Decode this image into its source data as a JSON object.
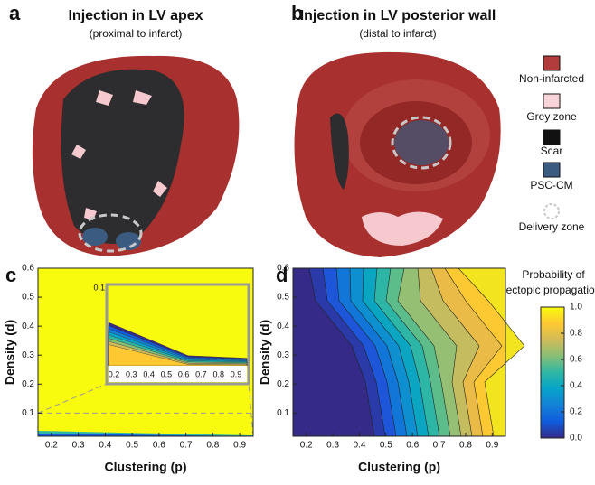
{
  "panels": [
    {
      "label": "a",
      "title": "Injection in LV apex",
      "subtitle": "(proximal to infarct)"
    },
    {
      "label": "b",
      "title": "Injection in LV posterior wall",
      "subtitle": "(distal to infarct)"
    }
  ],
  "legend": [
    {
      "name": "Non-infarcted",
      "color": "#b23b3b"
    },
    {
      "name": "Grey zone",
      "color": "#f8d3d7"
    },
    {
      "name": "Scar",
      "color": "#111111"
    },
    {
      "name": "PSC-CM",
      "color": "#3b5b80"
    },
    {
      "name": "Delivery zone",
      "color": "#c8c8c8"
    }
  ],
  "colorbar": {
    "title": [
      "Probability of",
      "ectopic propagation"
    ],
    "lim": [
      0,
      1
    ],
    "ticks": [
      {
        "value": 0,
        "label": "0.0"
      },
      0.2,
      0.4,
      0.6,
      0.8,
      {
        "value": 1,
        "label": "1.0"
      }
    ]
  },
  "chart_data": [
    {
      "type": "contour",
      "label": "c",
      "xlabel": "Clustering (p)",
      "ylabel": "Density (d)",
      "xlim": [
        0.15,
        0.95
      ],
      "ylim": [
        0.02,
        0.6
      ],
      "xticks": [
        0.2,
        0.3,
        0.4,
        0.5,
        0.6,
        0.7,
        0.8,
        0.9
      ],
      "yticks": [
        0.1,
        0.2,
        0.3,
        0.4,
        0.5,
        0.6
      ],
      "inset": {
        "xticks": [
          0.2,
          0.3,
          0.4,
          0.5,
          0.6,
          0.7,
          0.8,
          0.9
        ],
        "yticks": [
          0.1
        ]
      }
    },
    {
      "type": "contour",
      "label": "d",
      "xlabel": "Clustering (p)",
      "ylabel": "Density (d)",
      "xlim": [
        0.15,
        0.95
      ],
      "ylim": [
        0.02,
        0.6
      ],
      "xticks": [
        0.2,
        0.3,
        0.4,
        0.5,
        0.6,
        0.7,
        0.8,
        0.9
      ],
      "yticks": [
        0.1,
        0.2,
        0.3,
        0.4,
        0.5,
        0.6
      ]
    }
  ]
}
